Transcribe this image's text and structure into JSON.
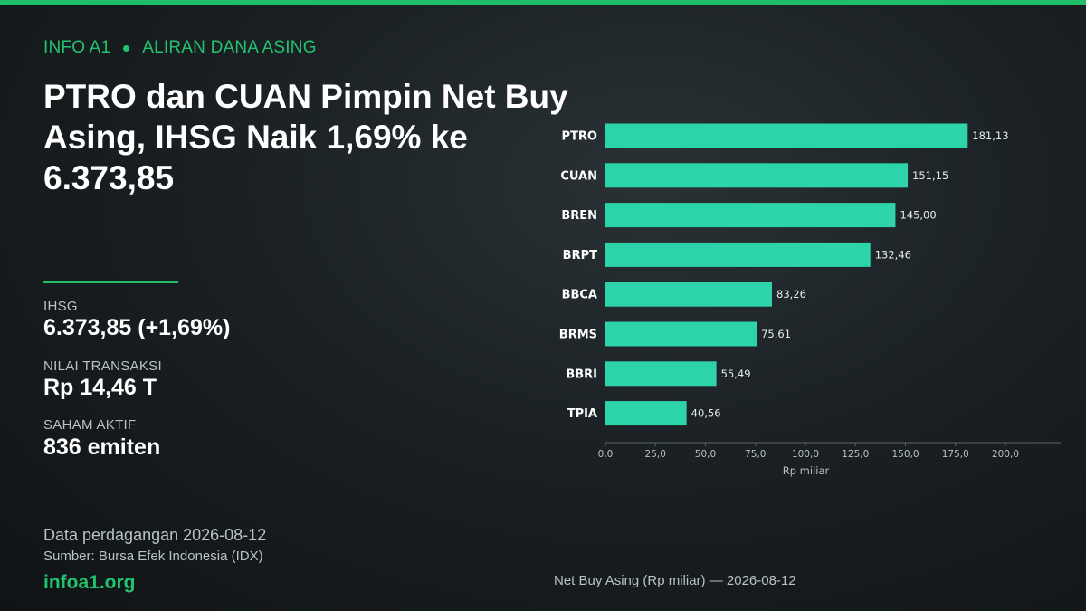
{
  "header": {
    "brand": "INFO A1",
    "section": "ALIRAN DANA ASING",
    "headline": "PTRO dan CUAN Pimpin Net Buy Asing, IHSG Naik 1,69% ke 6.373,85"
  },
  "stats": [
    {
      "label": "IHSG",
      "value": "6.373,85  (+1,69%)"
    },
    {
      "label": "NILAI TRANSAKSI",
      "value": "Rp 14,46 T"
    },
    {
      "label": "SAHAM AKTIF",
      "value": "836 emiten"
    }
  ],
  "footer": {
    "date_note": "Data perdagangan 2026-08-12",
    "source": "Sumber: Bursa Efek Indonesia (IDX)",
    "site": "infoa1.org",
    "chart_caption": "Net Buy Asing (Rp miliar) — 2026-08-12"
  },
  "colors": {
    "accent": "#22c36e",
    "bar": "#2dd4aa"
  },
  "chart_data": {
    "type": "bar",
    "orientation": "horizontal",
    "categories": [
      "PTRO",
      "CUAN",
      "BREN",
      "BRPT",
      "BBCA",
      "BRMS",
      "BBRI",
      "TPIA"
    ],
    "values": [
      181.13,
      151.15,
      145.0,
      132.46,
      83.26,
      75.61,
      55.49,
      40.56
    ],
    "value_labels": [
      "181,13",
      "151,15",
      "145,00",
      "132,46",
      "83,26",
      "75,61",
      "55,49",
      "40,56"
    ],
    "xlabel": "Rp miliar",
    "xlim": [
      0,
      225
    ],
    "xticks": [
      0,
      25,
      50,
      75,
      100,
      125,
      150,
      175,
      200
    ],
    "xtick_labels": [
      "0,0",
      "25,0",
      "50,0",
      "75,0",
      "100,0",
      "125,0",
      "150,0",
      "175,0",
      "200,0"
    ],
    "grid": false,
    "legend": "none"
  }
}
